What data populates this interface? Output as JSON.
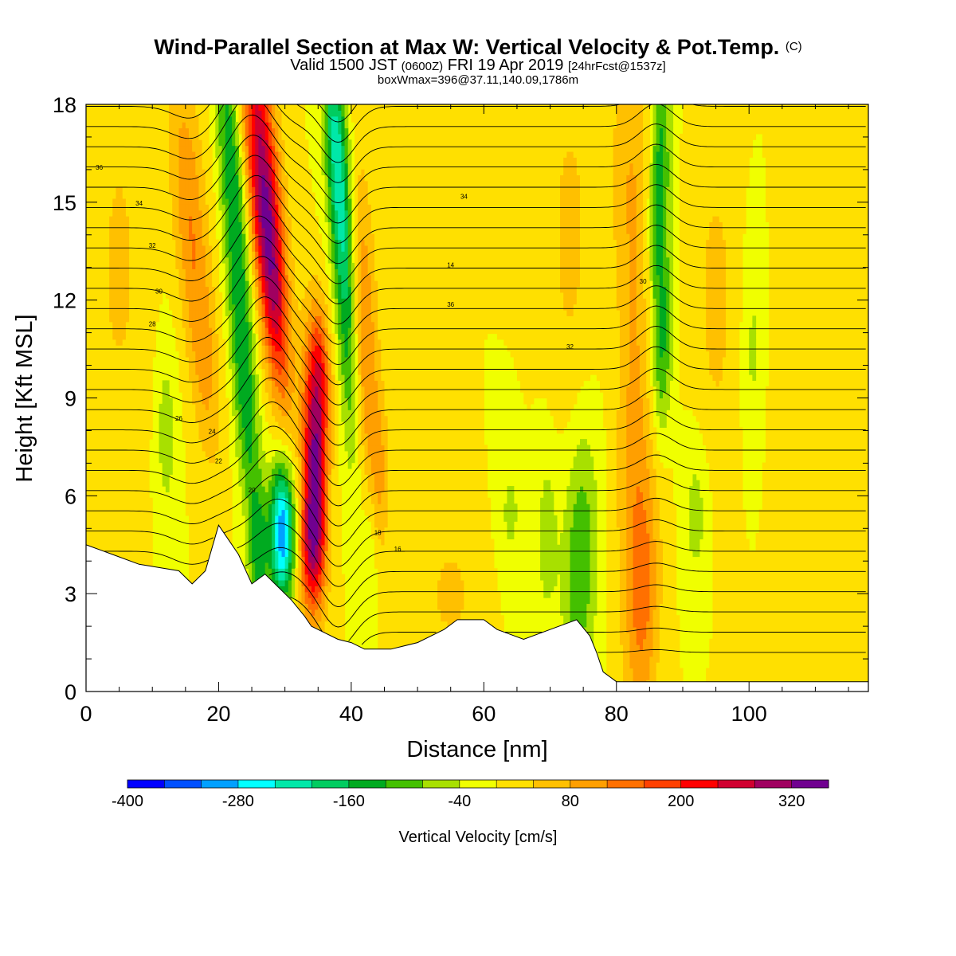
{
  "header": {
    "title_main": "Wind-Parallel Section at Max W: Vertical Velocity & Pot.Temp.",
    "title_mark": "(C)",
    "valid_a": "Valid 1500 JST",
    "valid_b": "(0600Z)",
    "valid_c": "FRI 19 Apr 2019",
    "valid_d": "[24hrFcst@1537z]",
    "box_info": "boxWmax=396@37.11,140.09,1786m"
  },
  "chart_data": {
    "type": "heatmap",
    "xlabel": "Distance [nm]",
    "ylabel": "Height [Kft MSL]",
    "xlim": [
      0,
      118
    ],
    "ylim": [
      0,
      18
    ],
    "x_ticks": [
      0,
      20,
      40,
      60,
      80,
      100
    ],
    "y_ticks": [
      0,
      3,
      6,
      9,
      12,
      15,
      18
    ],
    "colorbar": {
      "label": "Vertical Velocity [cm/s]",
      "tick_labels": [
        "-400",
        "-280",
        "-160",
        "-40",
        "80",
        "200",
        "320"
      ],
      "bounds": [
        -400,
        360
      ],
      "step": 40,
      "colors": [
        "#0000ff",
        "#0050ff",
        "#00a0ff",
        "#00ffff",
        "#00e8a8",
        "#00cc60",
        "#00aa20",
        "#44c000",
        "#a8e000",
        "#f0ff00",
        "#ffe000",
        "#ffc000",
        "#ff9f00",
        "#ff7000",
        "#ff4000",
        "#ff0000",
        "#d00030",
        "#a00060",
        "#700090"
      ]
    },
    "terrain_kft": {
      "x_nm": [
        0,
        4,
        8,
        14,
        16,
        18,
        20,
        23,
        25,
        27,
        29,
        31,
        33,
        34,
        36,
        38,
        40,
        42,
        46,
        50,
        54,
        56,
        60,
        62,
        66,
        70,
        74,
        76,
        77,
        78,
        80,
        84,
        90,
        100,
        110,
        118
      ],
      "height": [
        4.5,
        4.2,
        3.9,
        3.7,
        3.3,
        3.7,
        5.1,
        4.2,
        3.3,
        3.6,
        3.2,
        2.8,
        2.3,
        2.0,
        1.8,
        1.6,
        1.5,
        1.3,
        1.3,
        1.5,
        1.9,
        2.2,
        2.2,
        1.9,
        1.6,
        1.9,
        2.2,
        1.7,
        1.2,
        0.6,
        0.3,
        0.3,
        0.3,
        0.3,
        0.3,
        0.3
      ]
    },
    "w_features_cm_s": [
      {
        "x": 26.5,
        "y": 16.0,
        "value": 220
      },
      {
        "x": 27.0,
        "y": 12.0,
        "value": 240
      },
      {
        "x": 34.5,
        "y": 7.5,
        "value": 300
      },
      {
        "x": 34.0,
        "y": 4.0,
        "value": 200
      },
      {
        "x": 29.5,
        "y": 5.0,
        "value": -280
      },
      {
        "x": 22.0,
        "y": 15.0,
        "value": -140
      },
      {
        "x": 24.0,
        "y": 8.0,
        "value": -120
      },
      {
        "x": 37.5,
        "y": 16.5,
        "value": -200
      },
      {
        "x": 40.0,
        "y": 10.0,
        "value": -100
      },
      {
        "x": 43.5,
        "y": 6.0,
        "value": -60
      },
      {
        "x": 15.0,
        "y": 15.0,
        "value": 120
      },
      {
        "x": 42.0,
        "y": 10.0,
        "value": 120
      },
      {
        "x": 86.5,
        "y": 14.0,
        "value": -140
      },
      {
        "x": 74.0,
        "y": 3.5,
        "value": -120
      },
      {
        "x": 84.0,
        "y": 2.5,
        "value": 120
      }
    ],
    "theta_contour_labels": [
      "36",
      "34",
      "32",
      "30",
      "28",
      "26",
      "24",
      "22",
      "20",
      "18",
      "16",
      "14"
    ]
  }
}
